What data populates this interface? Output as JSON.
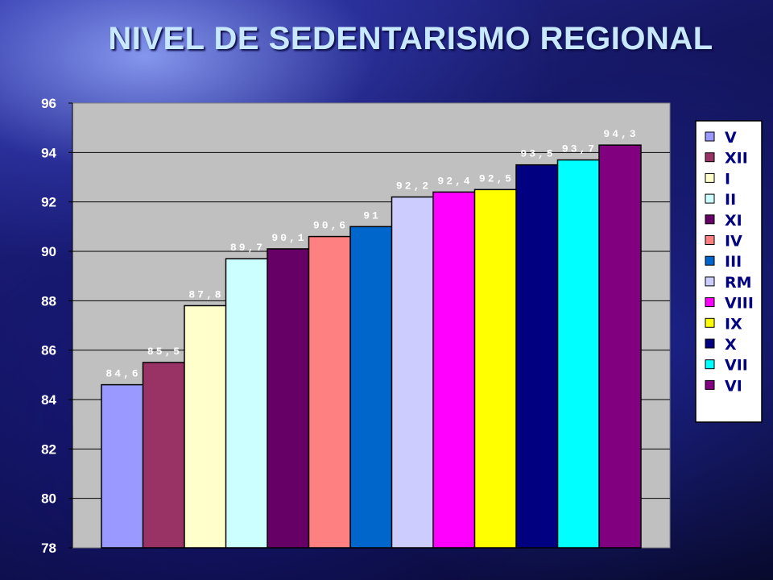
{
  "chart_data": {
    "type": "bar",
    "title": "NIVEL DE SEDENTARISMO REGIONAL",
    "xlabel": "",
    "ylabel": "",
    "ylim": [
      78,
      96
    ],
    "yticks": [
      "78",
      "80",
      "82",
      "84",
      "86",
      "88",
      "90",
      "92",
      "94",
      "96"
    ],
    "grid": true,
    "legend_position": "right",
    "series": [
      {
        "name": "V",
        "value": 84.6,
        "label": "84,6",
        "color": "#9999ff"
      },
      {
        "name": "XII",
        "value": 85.5,
        "label": "85,5",
        "color": "#993366"
      },
      {
        "name": "I",
        "value": 87.8,
        "label": "87,8",
        "color": "#ffffcc"
      },
      {
        "name": "II",
        "value": 89.7,
        "label": "89,7",
        "color": "#ccffff"
      },
      {
        "name": "XI",
        "value": 90.1,
        "label": "90,1",
        "color": "#660066"
      },
      {
        "name": "IV",
        "value": 90.6,
        "label": "90,6",
        "color": "#ff8080"
      },
      {
        "name": "III",
        "value": 91,
        "label": "91",
        "color": "#0066cc"
      },
      {
        "name": "RM",
        "value": 92.2,
        "label": "92,2",
        "color": "#ccccff"
      },
      {
        "name": "VIII",
        "value": 92.4,
        "label": "92,4",
        "color": "#ff00ff"
      },
      {
        "name": "IX",
        "value": 92.5,
        "label": "92,5",
        "color": "#ffff00"
      },
      {
        "name": "X",
        "value": 93.5,
        "label": "93,5",
        "color": "#000080"
      },
      {
        "name": "VII",
        "value": 93.7,
        "label": "93,7",
        "color": "#00ffff"
      },
      {
        "name": "VI",
        "value": 94.3,
        "label": "94,3",
        "color": "#800080"
      }
    ],
    "colors": {
      "plot_background": "#c0c0c0",
      "gridline": "#000000",
      "legend_background": "#ffffff",
      "text": "#ffffff"
    }
  }
}
